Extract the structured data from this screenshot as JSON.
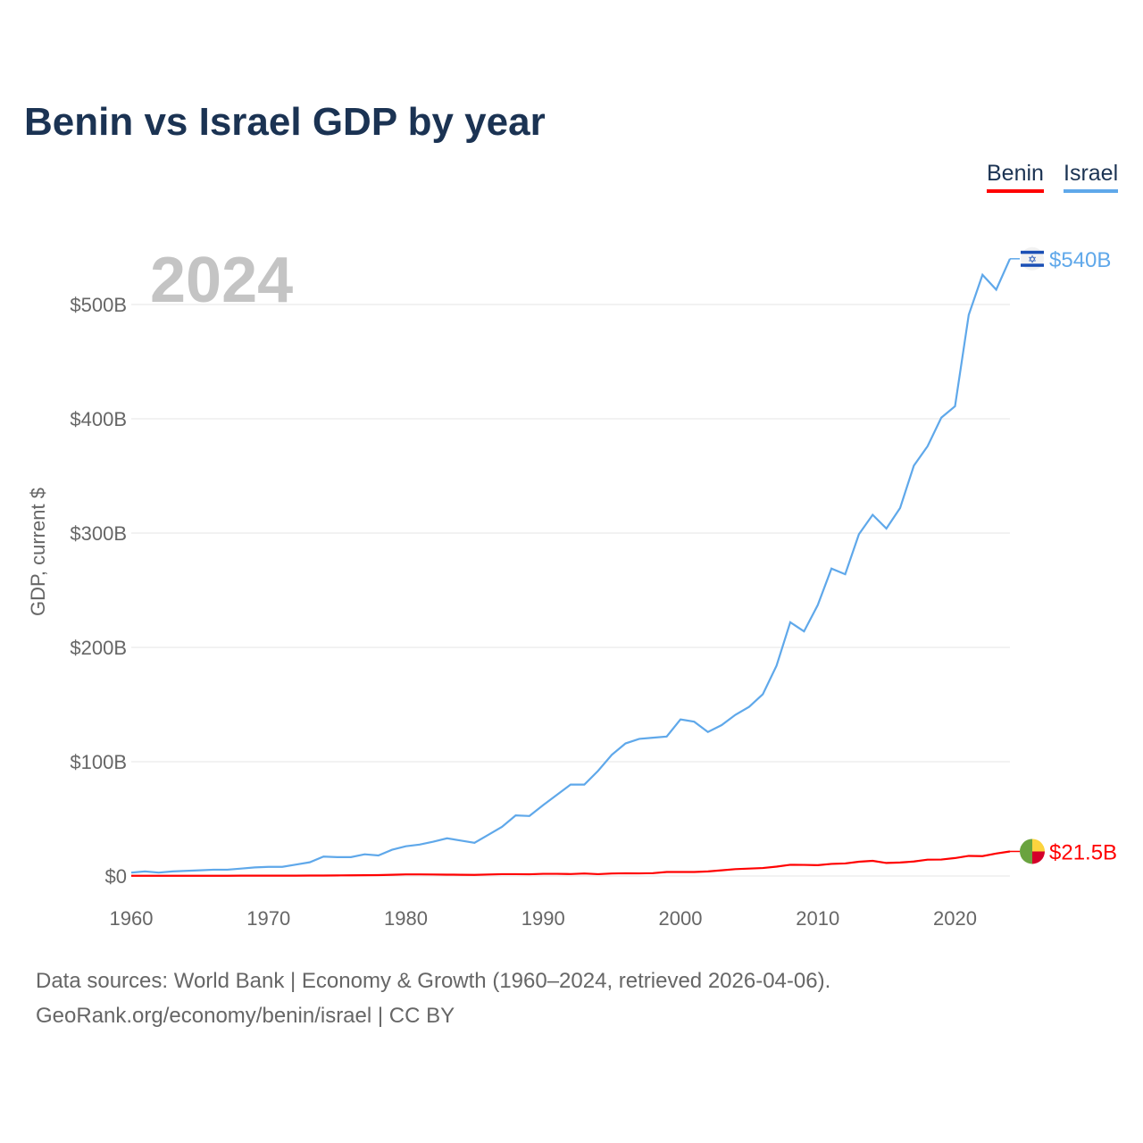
{
  "title": "Benin vs Israel GDP by year",
  "legend": [
    {
      "label": "Benin",
      "color": "#ff0000"
    },
    {
      "label": "Israel",
      "color": "#5fa8ea"
    }
  ],
  "year_watermark": "2024",
  "footer": {
    "line1": "Data sources: World Bank | Economy & Growth (1960–2024, retrieved 2026-04-06).",
    "line2": "GeoRank.org/economy/benin/israel | CC BY"
  },
  "chart_data": {
    "type": "line",
    "title": "Benin vs Israel GDP by year",
    "ylabel": "GDP, current $",
    "xlabel": "",
    "xlim": [
      1960,
      2024
    ],
    "ylim": [
      0,
      540
    ],
    "x_ticks": [
      "1960",
      "1970",
      "1980",
      "1990",
      "2000",
      "2010",
      "2020"
    ],
    "y_ticks": [
      {
        "v": 0,
        "label": "$0"
      },
      {
        "v": 100,
        "label": "$100B"
      },
      {
        "v": 200,
        "label": "$200B"
      },
      {
        "v": 300,
        "label": "$300B"
      },
      {
        "v": 400,
        "label": "$400B"
      },
      {
        "v": 500,
        "label": "$500B"
      }
    ],
    "grid": true,
    "legend_position": "top-right",
    "x": [
      1960,
      1961,
      1962,
      1963,
      1964,
      1965,
      1966,
      1967,
      1968,
      1969,
      1970,
      1971,
      1972,
      1973,
      1974,
      1975,
      1976,
      1977,
      1978,
      1979,
      1980,
      1981,
      1982,
      1983,
      1984,
      1985,
      1986,
      1987,
      1988,
      1989,
      1990,
      1991,
      1992,
      1993,
      1994,
      1995,
      1996,
      1997,
      1998,
      1999,
      2000,
      2001,
      2002,
      2003,
      2004,
      2005,
      2006,
      2007,
      2008,
      2009,
      2010,
      2011,
      2012,
      2013,
      2014,
      2015,
      2016,
      2017,
      2018,
      2019,
      2020,
      2021,
      2022,
      2023,
      2024
    ],
    "series": [
      {
        "name": "Israel",
        "color": "#5fa8ea",
        "end_label": "$540B",
        "flag": "israel-flag-icon",
        "values": [
          3,
          4,
          3,
          4,
          4.5,
          5,
          5.5,
          5.5,
          6.5,
          7.5,
          8,
          8,
          10,
          12,
          17,
          16.5,
          16.5,
          19,
          18,
          23,
          26,
          27.5,
          30,
          33,
          31,
          29,
          36,
          43,
          53,
          52.5,
          62,
          71,
          80,
          80,
          92,
          106,
          116,
          120,
          121,
          122,
          137,
          135,
          126,
          132,
          141,
          148,
          159,
          184,
          222,
          214,
          237,
          269,
          264,
          299,
          316,
          304,
          322,
          359,
          376,
          401,
          411,
          491,
          526,
          513,
          540
        ]
      },
      {
        "name": "Benin",
        "color": "#ff0000",
        "end_label": "$21.5B",
        "flag": "benin-flag-icon",
        "values": [
          0.2,
          0.2,
          0.2,
          0.2,
          0.2,
          0.2,
          0.2,
          0.2,
          0.3,
          0.3,
          0.3,
          0.3,
          0.3,
          0.4,
          0.4,
          0.5,
          0.6,
          0.7,
          0.8,
          1.1,
          1.4,
          1.4,
          1.3,
          1.2,
          1.1,
          1.0,
          1.3,
          1.6,
          1.6,
          1.5,
          1.9,
          1.9,
          1.7,
          2.2,
          1.6,
          2.2,
          2.4,
          2.3,
          2.5,
          3.5,
          3.5,
          3.5,
          4.0,
          5.0,
          6.0,
          6.5,
          7.0,
          8.2,
          9.8,
          9.7,
          9.5,
          10.6,
          11.0,
          12.5,
          13.3,
          11.4,
          11.8,
          12.7,
          14.3,
          14.4,
          15.7,
          17.6,
          17.4,
          19.7,
          21.5
        ]
      }
    ]
  }
}
